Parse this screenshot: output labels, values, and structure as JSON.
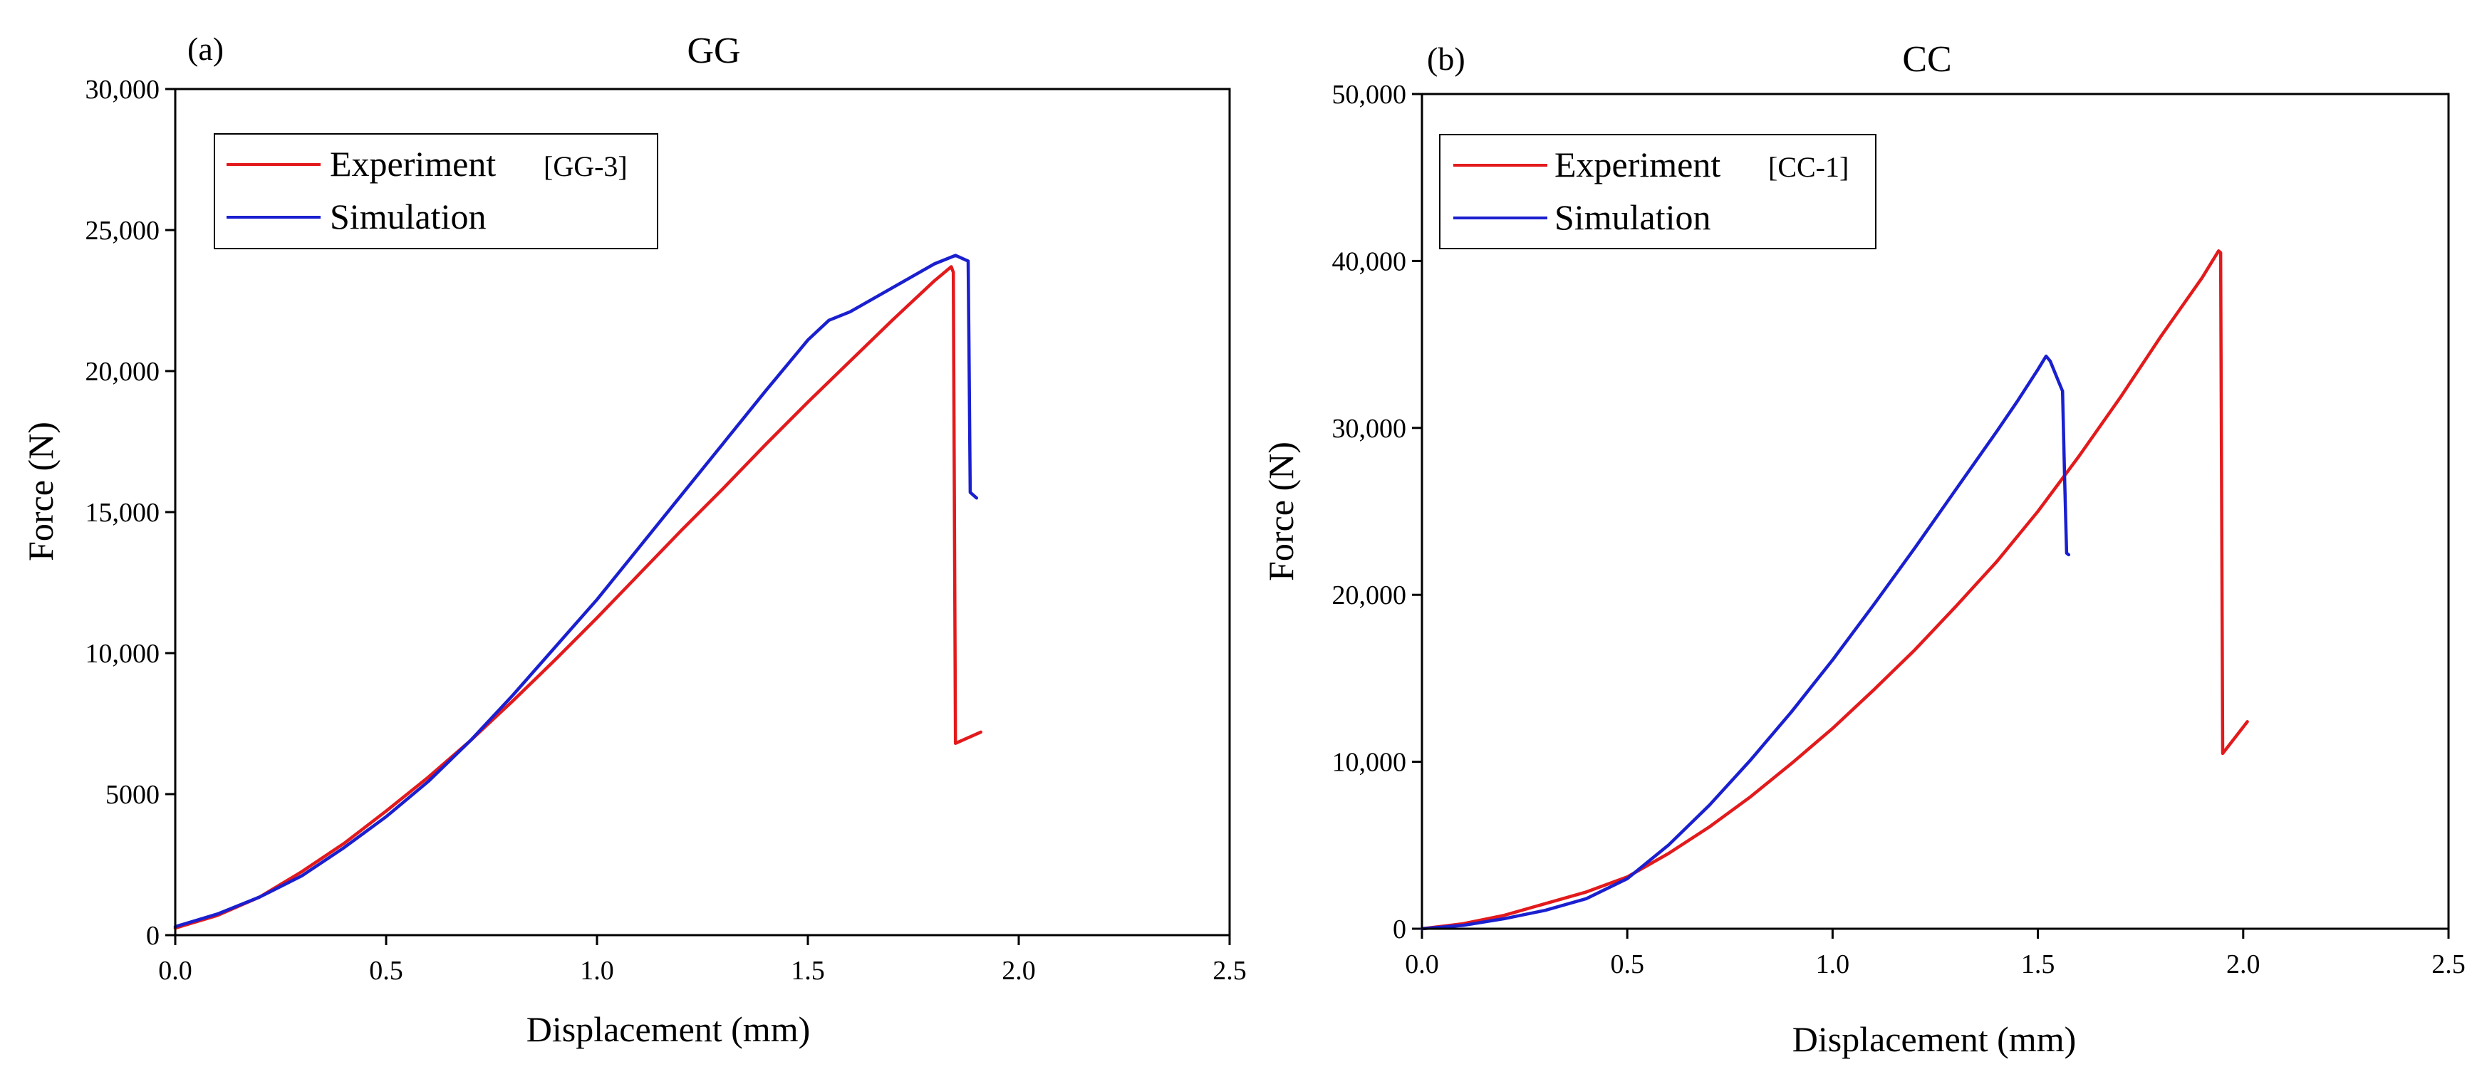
{
  "chart_data": [
    {
      "type": "line",
      "panel": "(a)",
      "title": "GG",
      "xlabel": "Displacement (mm)",
      "ylabel": "Force (N)",
      "xlim": [
        0,
        2.5
      ],
      "ylim": [
        0,
        30000
      ],
      "xticks": [
        0,
        0.5,
        1.0,
        1.5,
        2.0,
        2.5
      ],
      "xtick_labels": [
        "0.0",
        "0.5",
        "1.0",
        "1.5",
        "2.0",
        "2.5"
      ],
      "yticks": [
        0,
        5000,
        10000,
        15000,
        20000,
        25000,
        30000
      ],
      "ytick_labels": [
        "0",
        "5000",
        "10,000",
        "15,000",
        "20,000",
        "25,000",
        "30,000"
      ],
      "legend_position": "top-left",
      "series": [
        {
          "name": "Experiment",
          "bracket": "[GG-3]",
          "color": "#e31a1c",
          "x": [
            0,
            0.1,
            0.2,
            0.3,
            0.4,
            0.5,
            0.6,
            0.7,
            0.8,
            0.9,
            1.0,
            1.1,
            1.2,
            1.3,
            1.4,
            1.5,
            1.6,
            1.7,
            1.8,
            1.84,
            1.845,
            1.85,
            1.91
          ],
          "y": [
            250,
            700,
            1350,
            2250,
            3250,
            4400,
            5600,
            6900,
            8300,
            9750,
            11250,
            12800,
            14350,
            15850,
            17400,
            18900,
            20350,
            21800,
            23200,
            23700,
            23500,
            6800,
            7200
          ]
        },
        {
          "name": "Simulation",
          "bracket": "",
          "color": "#1a1fcf",
          "x": [
            0,
            0.1,
            0.2,
            0.3,
            0.4,
            0.5,
            0.6,
            0.7,
            0.8,
            0.9,
            1.0,
            1.1,
            1.2,
            1.3,
            1.4,
            1.5,
            1.55,
            1.6,
            1.7,
            1.8,
            1.85,
            1.88,
            1.882,
            1.885,
            1.9
          ],
          "y": [
            300,
            750,
            1350,
            2100,
            3100,
            4200,
            5450,
            6900,
            8500,
            10200,
            11900,
            13750,
            15600,
            17450,
            19300,
            21100,
            21800,
            22100,
            22950,
            23800,
            24100,
            23900,
            21000,
            15700,
            15500
          ]
        }
      ]
    },
    {
      "type": "line",
      "panel": "(b)",
      "title": "CC",
      "xlabel": "Displacement (mm)",
      "ylabel": "Force (N)",
      "xlim": [
        0,
        2.5
      ],
      "ylim": [
        0,
        50000
      ],
      "xticks": [
        0,
        0.5,
        1.0,
        1.5,
        2.0,
        2.5
      ],
      "xtick_labels": [
        "0.0",
        "0.5",
        "1.0",
        "1.5",
        "2.0",
        "2.5"
      ],
      "yticks": [
        0,
        10000,
        20000,
        30000,
        40000,
        50000
      ],
      "ytick_labels": [
        "0",
        "10,000",
        "20,000",
        "30,000",
        "40,000",
        "50,000"
      ],
      "legend_position": "top-left",
      "series": [
        {
          "name": "Experiment",
          "bracket": "[CC-1]",
          "color": "#e31a1c",
          "x": [
            0,
            0.1,
            0.2,
            0.3,
            0.4,
            0.5,
            0.6,
            0.7,
            0.8,
            0.9,
            1.0,
            1.1,
            1.2,
            1.3,
            1.4,
            1.5,
            1.6,
            1.7,
            1.8,
            1.9,
            1.94,
            1.945,
            1.95,
            2.01
          ],
          "y": [
            0,
            300,
            800,
            1500,
            2200,
            3100,
            4500,
            6100,
            7900,
            9900,
            12000,
            14300,
            16700,
            19300,
            22000,
            25000,
            28300,
            31800,
            35500,
            39000,
            40600,
            40500,
            10500,
            12400
          ]
        },
        {
          "name": "Simulation",
          "bracket": "",
          "color": "#1a1fcf",
          "x": [
            0,
            0.1,
            0.2,
            0.3,
            0.4,
            0.5,
            0.6,
            0.7,
            0.8,
            0.9,
            1.0,
            1.1,
            1.2,
            1.3,
            1.4,
            1.45,
            1.5,
            1.52,
            1.53,
            1.55,
            1.56,
            1.565,
            1.57,
            1.575
          ],
          "y": [
            0,
            200,
            600,
            1100,
            1800,
            3000,
            5000,
            7400,
            10100,
            13000,
            16100,
            19400,
            22800,
            26300,
            29800,
            31600,
            33500,
            34300,
            34000,
            32800,
            32200,
            27000,
            22500,
            22400
          ]
        }
      ]
    }
  ]
}
